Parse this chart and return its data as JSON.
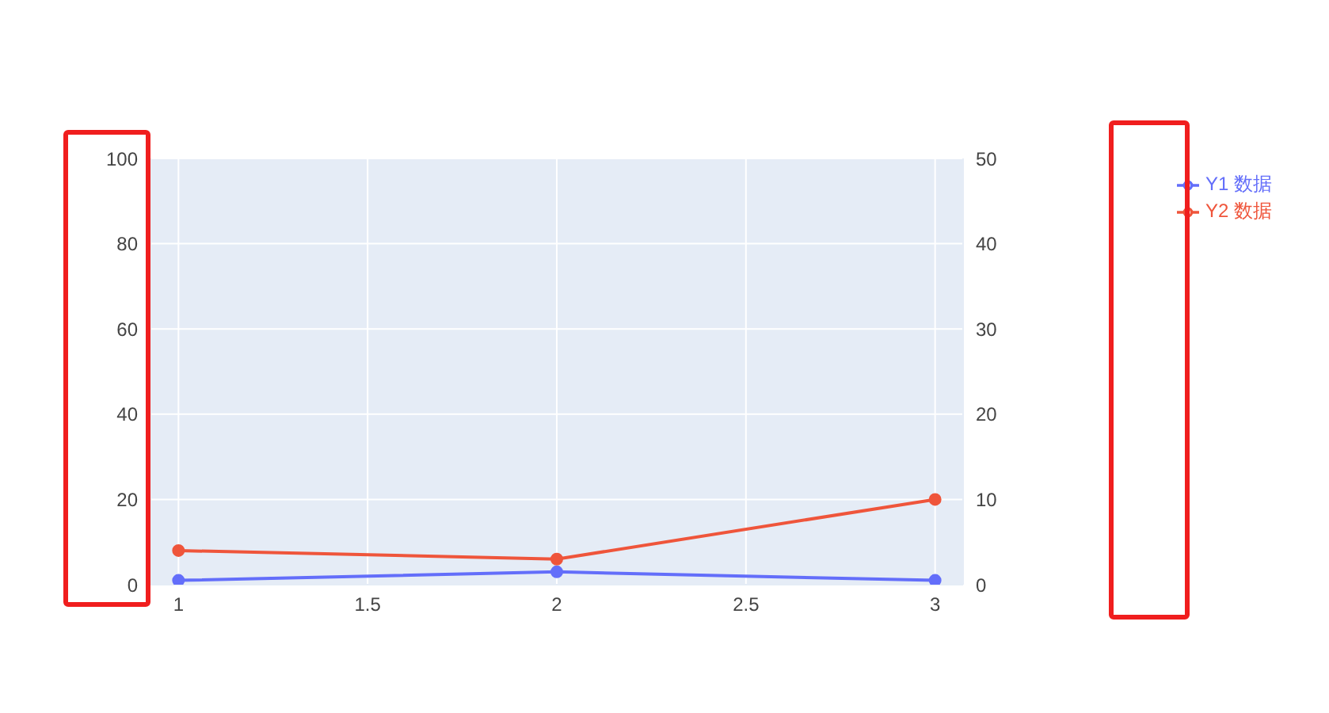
{
  "chart_data": {
    "type": "line",
    "x": [
      1,
      2,
      3
    ],
    "series": [
      {
        "name": "Y1 数据",
        "color": "#636efa",
        "values": [
          1,
          3,
          1
        ]
      },
      {
        "name": "Y2 数据",
        "color": "#ef553b",
        "values": [
          4,
          3,
          10
        ],
        "axis": "y2"
      }
    ],
    "xlim": [
      0.926,
      3.074
    ],
    "xticks": [
      1,
      1.5,
      2,
      2.5,
      3
    ],
    "ylim": [
      0,
      100
    ],
    "yticks": [
      0,
      20,
      40,
      60,
      80,
      100
    ],
    "y2lim": [
      0,
      50
    ],
    "y2ticks": [
      0,
      10,
      20,
      30,
      40,
      50
    ],
    "grid": true,
    "legend": "top right",
    "marker": "circle",
    "line_style": "solid"
  }
}
